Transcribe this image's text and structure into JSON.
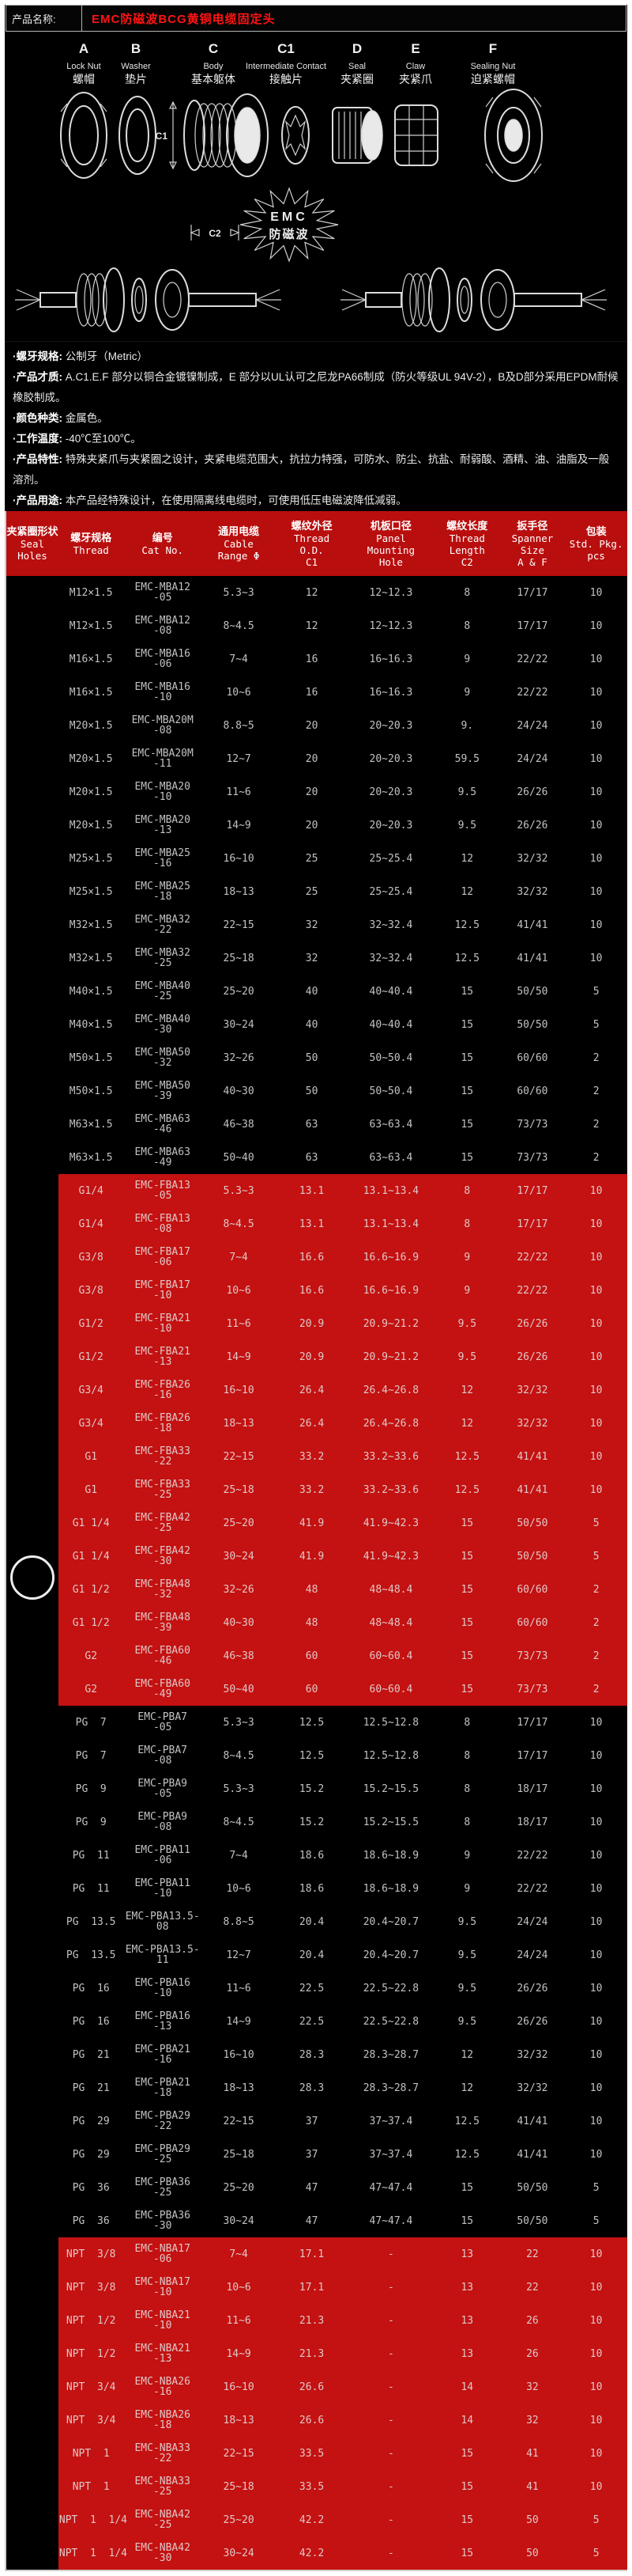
{
  "page": {
    "product_label": "产品名称:",
    "product_title": "EMC防磁波BCG黄铜电缆固定头"
  },
  "diagram": {
    "parts": [
      {
        "letter": "A",
        "en": "Lock Nut",
        "zh": "螺帽"
      },
      {
        "letter": "B",
        "en": "Washer",
        "zh": "垫片"
      },
      {
        "letter": "C",
        "en": "Body",
        "zh": "基本躯体"
      },
      {
        "letter": "C1",
        "en": "Intermediate Contact",
        "zh": "接触片"
      },
      {
        "letter": "D",
        "en": "Seal",
        "zh": "夹紧圈"
      },
      {
        "letter": "E",
        "en": "Claw",
        "zh": "夹紧爪"
      },
      {
        "letter": "F",
        "en": "Sealing Nut",
        "zh": "迫紧螺帽"
      }
    ],
    "dim_c1": "C1",
    "dim_c2": "C2",
    "emc_line1": "EMC",
    "emc_line2": "防磁波"
  },
  "specs": [
    {
      "label": "·螺牙规格:",
      "text": "公制牙（Metric）"
    },
    {
      "label": "·产品才质:",
      "text": "A.C1.E.F 部分以铜合金镀镍制成，E 部分以UL认可之尼龙PA66制成（防火等级UL 94V-2），B及D部分采用EPDM耐候橡胶制成。"
    },
    {
      "label": "·颜色种类:",
      "text": "金属色。"
    },
    {
      "label": "·工作温度:",
      "text": "-40℃至100℃。"
    },
    {
      "label": "·产品特性:",
      "text": "特殊夹紧爪与夹紧圈之设计，夹紧电缆范围大，抗拉力特强，可防水、防尘、抗盐、耐弱酸、酒精、油、油脂及一般溶剂。"
    },
    {
      "label": "·产品用途:",
      "text": "本产品经特殊设计，在使用隔离线电缆时，可使用低压电磁波降低减弱。"
    }
  ],
  "table": {
    "columns": [
      {
        "zh": "夹紧圈形状",
        "en": [
          "Seal",
          "Holes"
        ]
      },
      {
        "zh": "螺牙规格",
        "en": [
          "Thread"
        ]
      },
      {
        "zh": "编号",
        "en": [
          "Cat No."
        ]
      },
      {
        "zh": "通用电缆",
        "en": [
          "Cable",
          "Range Φ"
        ]
      },
      {
        "zh": "螺纹外径",
        "en": [
          "Thread",
          "O.D.",
          "C1"
        ]
      },
      {
        "zh": "机板口径",
        "en": [
          "Panel",
          "Mounting",
          "Hole"
        ]
      },
      {
        "zh": "螺纹长度",
        "en": [
          "Thread",
          "Length",
          "C2"
        ]
      },
      {
        "zh": "扳手径",
        "en": [
          "Spanner",
          "Size",
          "A & F"
        ]
      },
      {
        "zh": "包装",
        "en": [
          "Std. Pkg.",
          "pcs"
        ]
      }
    ],
    "rows": [
      {
        "s": "m",
        "t": "M12×1.5",
        "c": [
          "EMC-MBA12",
          "-05"
        ],
        "r": "5.3~3",
        "o": "12",
        "p": "12~12.3",
        "l": "8",
        "sp": "17/17",
        "k": "10"
      },
      {
        "s": "m",
        "t": "M12×1.5",
        "c": [
          "EMC-MBA12",
          "-08"
        ],
        "r": "8~4.5",
        "o": "12",
        "p": "12~12.3",
        "l": "8",
        "sp": "17/17",
        "k": "10"
      },
      {
        "s": "m",
        "t": "M16×1.5",
        "c": [
          "EMC-MBA16",
          "-06"
        ],
        "r": "7~4",
        "o": "16",
        "p": "16~16.3",
        "l": "9",
        "sp": "22/22",
        "k": "10"
      },
      {
        "s": "m",
        "t": "M16×1.5",
        "c": [
          "EMC-MBA16",
          "-10"
        ],
        "r": "10~6",
        "o": "16",
        "p": "16~16.3",
        "l": "9",
        "sp": "22/22",
        "k": "10"
      },
      {
        "s": "m",
        "t": "M20×1.5",
        "c": [
          "EMC-MBA20M",
          "-08"
        ],
        "r": "8.8~5",
        "o": "20",
        "p": "20~20.3",
        "l": "9.",
        "sp": "24/24",
        "k": "10"
      },
      {
        "s": "m",
        "t": "M20×1.5",
        "c": [
          "EMC-MBA20M",
          "-11"
        ],
        "r": "12~7",
        "o": "20",
        "p": "20~20.3",
        "l": "59.5",
        "sp": "24/24",
        "k": "10"
      },
      {
        "s": "m",
        "t": "M20×1.5",
        "c": [
          "EMC-MBA20",
          "-10"
        ],
        "r": "11~6",
        "o": "20",
        "p": "20~20.3",
        "l": "9.5",
        "sp": "26/26",
        "k": "10"
      },
      {
        "s": "m",
        "t": "M20×1.5",
        "c": [
          "EMC-MBA20",
          "-13"
        ],
        "r": "14~9",
        "o": "20",
        "p": "20~20.3",
        "l": "9.5",
        "sp": "26/26",
        "k": "10"
      },
      {
        "s": "m",
        "t": "M25×1.5",
        "c": [
          "EMC-MBA25",
          "-16"
        ],
        "r": "16~10",
        "o": "25",
        "p": "25~25.4",
        "l": "12",
        "sp": "32/32",
        "k": "10"
      },
      {
        "s": "m",
        "t": "M25×1.5",
        "c": [
          "EMC-MBA25",
          "-18"
        ],
        "r": "18~13",
        "o": "25",
        "p": "25~25.4",
        "l": "12",
        "sp": "32/32",
        "k": "10"
      },
      {
        "s": "m",
        "t": "M32×1.5",
        "c": [
          "EMC-MBA32",
          "-22"
        ],
        "r": "22~15",
        "o": "32",
        "p": "32~32.4",
        "l": "12.5",
        "sp": "41/41",
        "k": "10"
      },
      {
        "s": "m",
        "t": "M32×1.5",
        "c": [
          "EMC-MBA32",
          "-25"
        ],
        "r": "25~18",
        "o": "32",
        "p": "32~32.4",
        "l": "12.5",
        "sp": "41/41",
        "k": "10"
      },
      {
        "s": "m",
        "t": "M40×1.5",
        "c": [
          "EMC-MBA40",
          "-25"
        ],
        "r": "25~20",
        "o": "40",
        "p": "40~40.4",
        "l": "15",
        "sp": "50/50",
        "k": "5"
      },
      {
        "s": "m",
        "t": "M40×1.5",
        "c": [
          "EMC-MBA40",
          "-30"
        ],
        "r": "30~24",
        "o": "40",
        "p": "40~40.4",
        "l": "15",
        "sp": "50/50",
        "k": "5"
      },
      {
        "s": "m",
        "t": "M50×1.5",
        "c": [
          "EMC-MBA50",
          "-32"
        ],
        "r": "32~26",
        "o": "50",
        "p": "50~50.4",
        "l": "15",
        "sp": "60/60",
        "k": "2"
      },
      {
        "s": "m",
        "t": "M50×1.5",
        "c": [
          "EMC-MBA50",
          "-39"
        ],
        "r": "40~30",
        "o": "50",
        "p": "50~50.4",
        "l": "15",
        "sp": "60/60",
        "k": "2"
      },
      {
        "s": "m",
        "t": "M63×1.5",
        "c": [
          "EMC-MBA63",
          "-46"
        ],
        "r": "46~38",
        "o": "63",
        "p": "63~63.4",
        "l": "15",
        "sp": "73/73",
        "k": "2"
      },
      {
        "s": "m",
        "t": "M63×1.5",
        "c": [
          "EMC-MBA63",
          "-49"
        ],
        "r": "50~40",
        "o": "63",
        "p": "63~63.4",
        "l": "15",
        "sp": "73/73",
        "k": "2"
      },
      {
        "s": "g",
        "t": "G1/4",
        "c": [
          "EMC-FBA13",
          "-05"
        ],
        "r": "5.3~3",
        "o": "13.1",
        "p": "13.1~13.4",
        "l": "8",
        "sp": "17/17",
        "k": "10"
      },
      {
        "s": "g",
        "t": "G1/4",
        "c": [
          "EMC-FBA13",
          "-08"
        ],
        "r": "8~4.5",
        "o": "13.1",
        "p": "13.1~13.4",
        "l": "8",
        "sp": "17/17",
        "k": "10"
      },
      {
        "s": "g",
        "t": "G3/8",
        "c": [
          "EMC-FBA17",
          "-06"
        ],
        "r": "7~4",
        "o": "16.6",
        "p": "16.6~16.9",
        "l": "9",
        "sp": "22/22",
        "k": "10"
      },
      {
        "s": "g",
        "t": "G3/8",
        "c": [
          "EMC-FBA17",
          "-10"
        ],
        "r": "10~6",
        "o": "16.6",
        "p": "16.6~16.9",
        "l": "9",
        "sp": "22/22",
        "k": "10"
      },
      {
        "s": "g",
        "t": "G1/2",
        "c": [
          "EMC-FBA21",
          "-10"
        ],
        "r": "11~6",
        "o": "20.9",
        "p": "20.9~21.2",
        "l": "9.5",
        "sp": "26/26",
        "k": "10"
      },
      {
        "s": "g",
        "t": "G1/2",
        "c": [
          "EMC-FBA21",
          "-13"
        ],
        "r": "14~9",
        "o": "20.9",
        "p": "20.9~21.2",
        "l": "9.5",
        "sp": "26/26",
        "k": "10"
      },
      {
        "s": "g",
        "t": "G3/4",
        "c": [
          "EMC-FBA26",
          "-16"
        ],
        "r": "16~10",
        "o": "26.4",
        "p": "26.4~26.8",
        "l": "12",
        "sp": "32/32",
        "k": "10"
      },
      {
        "s": "g",
        "t": "G3/4",
        "c": [
          "EMC-FBA26",
          "-18"
        ],
        "r": "18~13",
        "o": "26.4",
        "p": "26.4~26.8",
        "l": "12",
        "sp": "32/32",
        "k": "10"
      },
      {
        "s": "g",
        "t": "G1",
        "c": [
          "EMC-FBA33",
          "-22"
        ],
        "r": "22~15",
        "o": "33.2",
        "p": "33.2~33.6",
        "l": "12.5",
        "sp": "41/41",
        "k": "10"
      },
      {
        "s": "g",
        "t": "G1",
        "c": [
          "EMC-FBA33",
          "-25"
        ],
        "r": "25~18",
        "o": "33.2",
        "p": "33.2~33.6",
        "l": "12.5",
        "sp": "41/41",
        "k": "10"
      },
      {
        "s": "g",
        "t": "G1 1/4",
        "c": [
          "EMC-FBA42",
          "-25"
        ],
        "r": "25~20",
        "o": "41.9",
        "p": "41.9~42.3",
        "l": "15",
        "sp": "50/50",
        "k": "5"
      },
      {
        "s": "g",
        "t": "G1 1/4",
        "c": [
          "EMC-FBA42",
          "-30"
        ],
        "r": "30~24",
        "o": "41.9",
        "p": "41.9~42.3",
        "l": "15",
        "sp": "50/50",
        "k": "5"
      },
      {
        "s": "g",
        "t": "G1 1/2",
        "c": [
          "EMC-FBA48",
          "-32"
        ],
        "r": "32~26",
        "o": "48",
        "p": "48~48.4",
        "l": "15",
        "sp": "60/60",
        "k": "2",
        "icon": true
      },
      {
        "s": "g",
        "t": "G1 1/2",
        "c": [
          "EMC-FBA48",
          "-39"
        ],
        "r": "40~30",
        "o": "48",
        "p": "48~48.4",
        "l": "15",
        "sp": "60/60",
        "k": "2"
      },
      {
        "s": "g",
        "t": "G2",
        "c": [
          "EMC-FBA60",
          "-46"
        ],
        "r": "46~38",
        "o": "60",
        "p": "60~60.4",
        "l": "15",
        "sp": "73/73",
        "k": "2"
      },
      {
        "s": "g",
        "t": "G2",
        "c": [
          "EMC-FBA60",
          "-49"
        ],
        "r": "50~40",
        "o": "60",
        "p": "60~60.4",
        "l": "15",
        "sp": "73/73",
        "k": "2"
      },
      {
        "s": "pg",
        "t": "PG  7",
        "c": [
          "EMC-PBA7",
          "-05"
        ],
        "r": "5.3~3",
        "o": "12.5",
        "p": "12.5~12.8",
        "l": "8",
        "sp": "17/17",
        "k": "10"
      },
      {
        "s": "pg",
        "t": "PG  7",
        "c": [
          "EMC-PBA7",
          "-08"
        ],
        "r": "8~4.5",
        "o": "12.5",
        "p": "12.5~12.8",
        "l": "8",
        "sp": "17/17",
        "k": "10"
      },
      {
        "s": "pg",
        "t": "PG  9",
        "c": [
          "EMC-PBA9",
          "-05"
        ],
        "r": "5.3~3",
        "o": "15.2",
        "p": "15.2~15.5",
        "l": "8",
        "sp": "18/17",
        "k": "10"
      },
      {
        "s": "pg",
        "t": "PG  9",
        "c": [
          "EMC-PBA9",
          "-08"
        ],
        "r": "8~4.5",
        "o": "15.2",
        "p": "15.2~15.5",
        "l": "8",
        "sp": "18/17",
        "k": "10"
      },
      {
        "s": "pg",
        "t": "PG  11",
        "c": [
          "EMC-PBA11",
          "-06"
        ],
        "r": "7~4",
        "o": "18.6",
        "p": "18.6~18.9",
        "l": "9",
        "sp": "22/22",
        "k": "10"
      },
      {
        "s": "pg",
        "t": "PG  11",
        "c": [
          "EMC-PBA11",
          "-10"
        ],
        "r": "10~6",
        "o": "18.6",
        "p": "18.6~18.9",
        "l": "9",
        "sp": "22/22",
        "k": "10"
      },
      {
        "s": "pg",
        "t": "PG  13.5",
        "c": [
          "EMC-PBA13.5-",
          "08"
        ],
        "r": "8.8~5",
        "o": "20.4",
        "p": "20.4~20.7",
        "l": "9.5",
        "sp": "24/24",
        "k": "10"
      },
      {
        "s": "pg",
        "t": "PG  13.5",
        "c": [
          "EMC-PBA13.5-",
          "11"
        ],
        "r": "12~7",
        "o": "20.4",
        "p": "20.4~20.7",
        "l": "9.5",
        "sp": "24/24",
        "k": "10"
      },
      {
        "s": "pg",
        "t": "PG  16",
        "c": [
          "EMC-PBA16",
          "-10"
        ],
        "r": "11~6",
        "o": "22.5",
        "p": "22.5~22.8",
        "l": "9.5",
        "sp": "26/26",
        "k": "10"
      },
      {
        "s": "pg",
        "t": "PG  16",
        "c": [
          "EMC-PBA16",
          "-13"
        ],
        "r": "14~9",
        "o": "22.5",
        "p": "22.5~22.8",
        "l": "9.5",
        "sp": "26/26",
        "k": "10"
      },
      {
        "s": "pg",
        "t": "PG  21",
        "c": [
          "EMC-PBA21",
          "-16"
        ],
        "r": "16~10",
        "o": "28.3",
        "p": "28.3~28.7",
        "l": "12",
        "sp": "32/32",
        "k": "10"
      },
      {
        "s": "pg",
        "t": "PG  21",
        "c": [
          "EMC-PBA21",
          "-18"
        ],
        "r": "18~13",
        "o": "28.3",
        "p": "28.3~28.7",
        "l": "12",
        "sp": "32/32",
        "k": "10"
      },
      {
        "s": "pg",
        "t": "PG  29",
        "c": [
          "EMC-PBA29",
          "-22"
        ],
        "r": "22~15",
        "o": "37",
        "p": "37~37.4",
        "l": "12.5",
        "sp": "41/41",
        "k": "10"
      },
      {
        "s": "pg",
        "t": "PG  29",
        "c": [
          "EMC-PBA29",
          "-25"
        ],
        "r": "25~18",
        "o": "37",
        "p": "37~37.4",
        "l": "12.5",
        "sp": "41/41",
        "k": "10"
      },
      {
        "s": "pg",
        "t": "PG  36",
        "c": [
          "EMC-PBA36",
          "-25"
        ],
        "r": "25~20",
        "o": "47",
        "p": "47~47.4",
        "l": "15",
        "sp": "50/50",
        "k": "5"
      },
      {
        "s": "pg",
        "t": "PG  36",
        "c": [
          "EMC-PBA36",
          "-30"
        ],
        "r": "30~24",
        "o": "47",
        "p": "47~47.4",
        "l": "15",
        "sp": "50/50",
        "k": "5"
      },
      {
        "s": "npt",
        "t": "NPT  3/8",
        "c": [
          "EMC-NBA17",
          "-06"
        ],
        "r": "7~4",
        "o": "17.1",
        "p": "-",
        "l": "13",
        "sp": "22",
        "k": "10"
      },
      {
        "s": "npt",
        "t": "NPT  3/8",
        "c": [
          "EMC-NBA17",
          "-10"
        ],
        "r": "10~6",
        "o": "17.1",
        "p": "-",
        "l": "13",
        "sp": "22",
        "k": "10"
      },
      {
        "s": "npt",
        "t": "NPT  1/2",
        "c": [
          "EMC-NBA21",
          "-10"
        ],
        "r": "11~6",
        "o": "21.3",
        "p": "-",
        "l": "13",
        "sp": "26",
        "k": "10"
      },
      {
        "s": "npt",
        "t": "NPT  1/2",
        "c": [
          "EMC-NBA21",
          "-13"
        ],
        "r": "14~9",
        "o": "21.3",
        "p": "-",
        "l": "13",
        "sp": "26",
        "k": "10"
      },
      {
        "s": "npt",
        "t": "NPT  3/4",
        "c": [
          "EMC-NBA26",
          "-16"
        ],
        "r": "16~10",
        "o": "26.6",
        "p": "-",
        "l": "14",
        "sp": "32",
        "k": "10"
      },
      {
        "s": "npt",
        "t": "NPT  3/4",
        "c": [
          "EMC-NBA26",
          "-18"
        ],
        "r": "18~13",
        "o": "26.6",
        "p": "-",
        "l": "14",
        "sp": "32",
        "k": "10"
      },
      {
        "s": "npt",
        "t": "NPT  1",
        "c": [
          "EMC-NBA33",
          "-22"
        ],
        "r": "22~15",
        "o": "33.5",
        "p": "-",
        "l": "15",
        "sp": "41",
        "k": "10"
      },
      {
        "s": "npt",
        "t": "NPT  1",
        "c": [
          "EMC-NBA33",
          "-25"
        ],
        "r": "25~18",
        "o": "33.5",
        "p": "-",
        "l": "15",
        "sp": "41",
        "k": "10"
      },
      {
        "s": "npt",
        "t": "NPT  1  1/4",
        "c": [
          "EMC-NBA42",
          "-25"
        ],
        "r": "25~20",
        "o": "42.2",
        "p": "-",
        "l": "15",
        "sp": "50",
        "k": "5"
      },
      {
        "s": "npt",
        "t": "NPT  1  1/4",
        "c": [
          "EMC-NBA42",
          "-30"
        ],
        "r": "30~24",
        "o": "42.2",
        "p": "-",
        "l": "15",
        "sp": "50",
        "k": "5"
      }
    ]
  },
  "colors": {
    "section_red": "#c41111",
    "header_red": "#b90e0e",
    "title_red": "#ff1414",
    "row_text": "#c2c2c2",
    "background": "#000000"
  }
}
